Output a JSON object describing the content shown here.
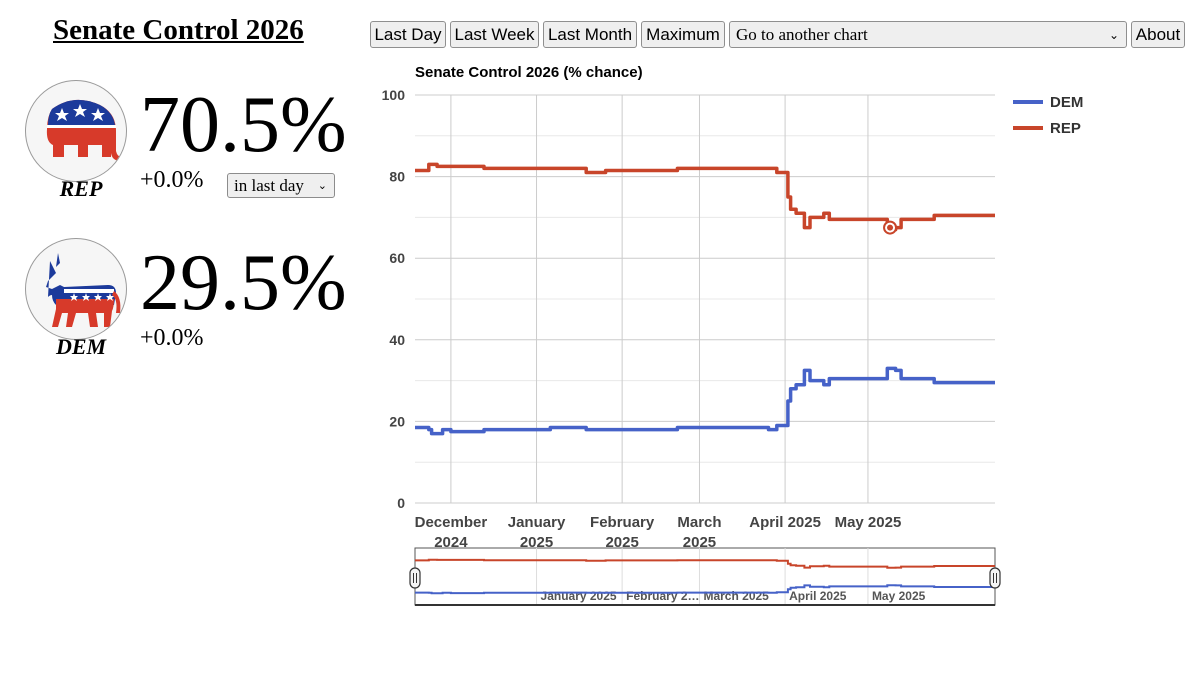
{
  "page_title": "Senate Control 2026",
  "toolbar": {
    "last_day": "Last Day",
    "last_week": "Last Week",
    "last_month": "Last Month",
    "maximum": "Maximum",
    "chart_select": "Go to another chart",
    "about": "About"
  },
  "rep": {
    "label": "REP",
    "percent": "70.5%",
    "change": "+0.0%",
    "period": "in last day",
    "color": "#c8452a"
  },
  "dem": {
    "label": "DEM",
    "percent": "29.5%",
    "change": "+0.0%",
    "color": "#4662c8"
  },
  "chart_data": {
    "type": "line",
    "title": "Senate Control 2026 (% chance)",
    "ylim": [
      0,
      100
    ],
    "yticks": [
      0,
      20,
      40,
      60,
      80,
      100
    ],
    "xlim": [
      "2024-11-18",
      "2025-06-16"
    ],
    "x_ticks": [
      {
        "date": "2024-12-01",
        "lines": [
          "December",
          "2024"
        ]
      },
      {
        "date": "2025-01-01",
        "lines": [
          "January",
          "2025"
        ]
      },
      {
        "date": "2025-02-01",
        "lines": [
          "February",
          "2025"
        ]
      },
      {
        "date": "2025-03-01",
        "lines": [
          "March",
          "2025"
        ]
      },
      {
        "date": "2025-04-01",
        "lines": [
          "April 2025"
        ]
      },
      {
        "date": "2025-05-01",
        "lines": [
          "May 2025"
        ]
      }
    ],
    "grid": true,
    "legend": "top-right",
    "step": true,
    "series": [
      {
        "name": "DEM",
        "color": "#4662c8",
        "points": [
          [
            "2024-11-18",
            18.5
          ],
          [
            "2024-11-23",
            18.0
          ],
          [
            "2024-11-24",
            17.0
          ],
          [
            "2024-11-28",
            18.0
          ],
          [
            "2024-12-01",
            17.5
          ],
          [
            "2024-12-13",
            18.0
          ],
          [
            "2025-01-06",
            18.5
          ],
          [
            "2025-01-19",
            18.0
          ],
          [
            "2025-02-21",
            18.5
          ],
          [
            "2025-03-26",
            18.0
          ],
          [
            "2025-03-29",
            19.0
          ],
          [
            "2025-04-02",
            25.0
          ],
          [
            "2025-04-03",
            28.0
          ],
          [
            "2025-04-05",
            29.0
          ],
          [
            "2025-04-08",
            32.5
          ],
          [
            "2025-04-10",
            30.0
          ],
          [
            "2025-04-15",
            29.0
          ],
          [
            "2025-04-17",
            30.5
          ],
          [
            "2025-05-07",
            30.5
          ],
          [
            "2025-05-08",
            33.0
          ],
          [
            "2025-05-11",
            32.5
          ],
          [
            "2025-05-13",
            30.5
          ],
          [
            "2025-05-22",
            30.5
          ],
          [
            "2025-05-25",
            29.5
          ],
          [
            "2025-06-16",
            29.5
          ]
        ]
      },
      {
        "name": "REP",
        "color": "#c8452a",
        "points": [
          [
            "2024-11-18",
            81.5
          ],
          [
            "2024-11-23",
            83.0
          ],
          [
            "2024-11-26",
            82.5
          ],
          [
            "2024-12-13",
            82.0
          ],
          [
            "2025-01-19",
            81.0
          ],
          [
            "2025-01-26",
            81.5
          ],
          [
            "2025-02-21",
            82.0
          ],
          [
            "2025-03-26",
            82.0
          ],
          [
            "2025-03-29",
            81.0
          ],
          [
            "2025-04-02",
            75.0
          ],
          [
            "2025-04-03",
            72.0
          ],
          [
            "2025-04-05",
            71.0
          ],
          [
            "2025-04-08",
            67.5
          ],
          [
            "2025-04-10",
            70.0
          ],
          [
            "2025-04-15",
            71.0
          ],
          [
            "2025-04-17",
            69.5
          ],
          [
            "2025-05-07",
            69.5
          ],
          [
            "2025-05-08",
            67.0
          ],
          [
            "2025-05-11",
            67.5
          ],
          [
            "2025-05-13",
            69.5
          ],
          [
            "2025-05-22",
            69.5
          ],
          [
            "2025-05-25",
            70.5
          ],
          [
            "2025-06-16",
            70.5
          ]
        ]
      }
    ],
    "highlight": {
      "series": "REP",
      "date": "2025-05-09",
      "value": 67.5
    },
    "navigator": {
      "labels": [
        "January 2025",
        "February 2…",
        "March 2025",
        "April 2025",
        "May 2025"
      ],
      "label_dates": [
        "2025-01-01",
        "2025-02-01",
        "2025-03-01",
        "2025-04-01",
        "2025-05-01"
      ]
    }
  }
}
